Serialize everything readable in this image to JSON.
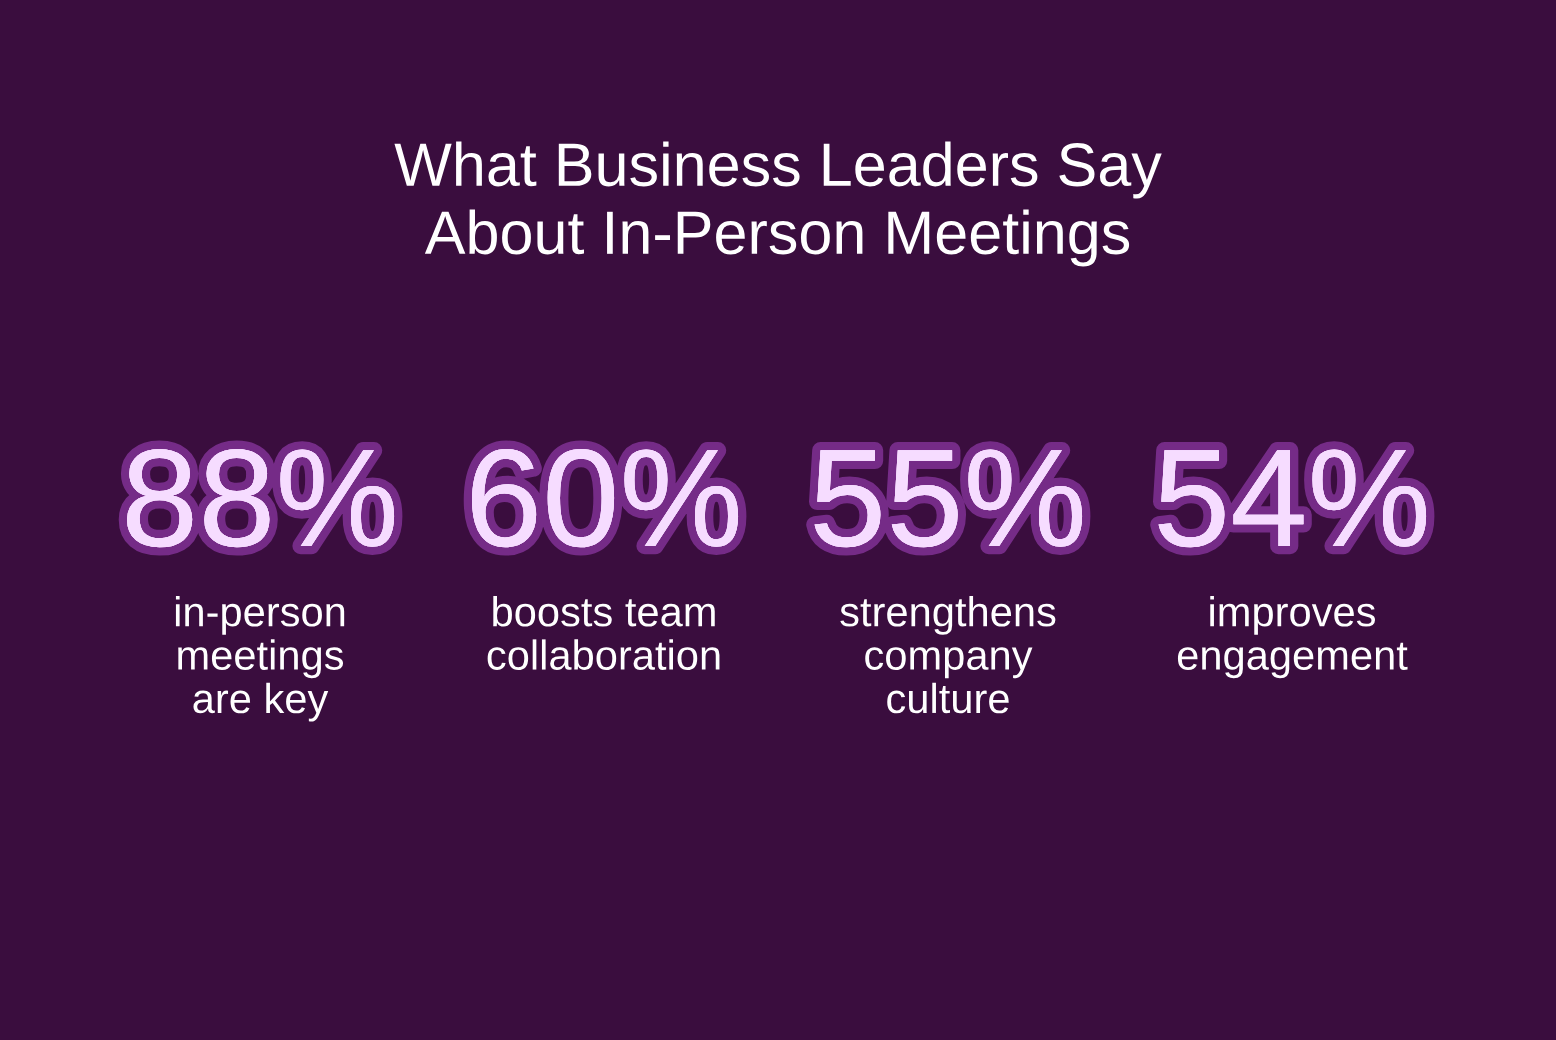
{
  "chart_data": {
    "type": "other",
    "title": "What Business Leaders Say\nAbout In-Person Meetings",
    "categories": [
      "in-person\nmeetings\nare key",
      "boosts team\ncollaboration",
      "strengthens\ncompany\nculture",
      "improves\nengagement"
    ],
    "values": [
      88,
      60,
      55,
      54
    ],
    "value_labels": [
      "88%",
      "60%",
      "55%",
      "54%"
    ],
    "color": "#f6dcff"
  }
}
